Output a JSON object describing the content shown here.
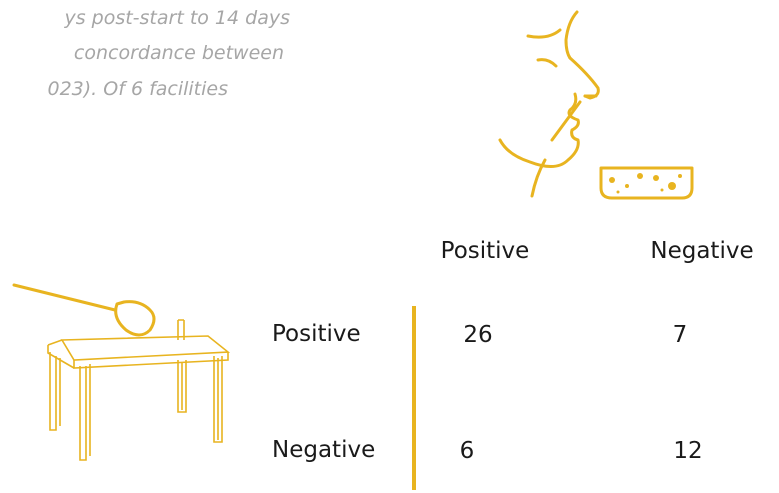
{
  "intro": {
    "lines": [
      "ys post-start to 14 days",
      "concordance between",
      "023). Of 6 facilities"
    ]
  },
  "table": {
    "columns": [
      "Positive",
      "Negative"
    ],
    "rows": [
      {
        "label": "Positive",
        "cells": [
          "26",
          "7"
        ]
      },
      {
        "label": "Negative",
        "cells": [
          "6",
          "12"
        ]
      }
    ]
  }
}
